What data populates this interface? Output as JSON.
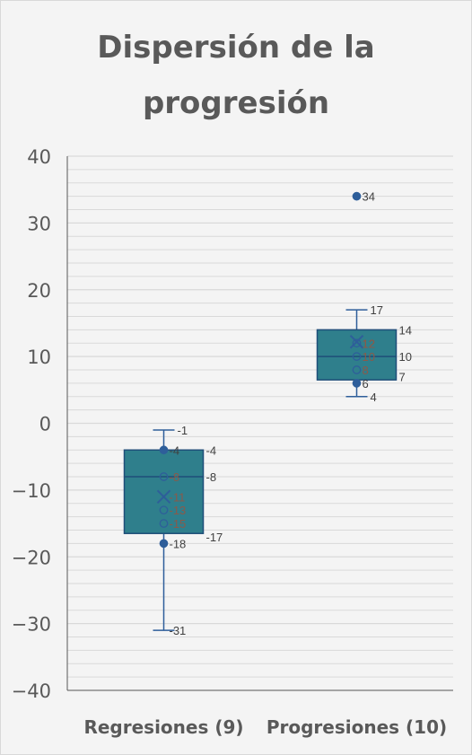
{
  "chart_data": {
    "type": "box",
    "title_line1": "Dispersión de la",
    "title_line2": "progresión",
    "ylim": [
      -40,
      40
    ],
    "yticks": [
      40,
      30,
      20,
      10,
      0,
      -10,
      -20,
      -30,
      -40
    ],
    "ytick_labels": [
      "40",
      "30",
      "20",
      "10",
      "0",
      "−10",
      "−20",
      "−30",
      "−40"
    ],
    "grid": true,
    "categories": [
      "Regresiones (9)",
      "Progresiones (10)"
    ],
    "series": [
      {
        "category": "Regresiones (9)",
        "min": -31,
        "q1": -16.5,
        "median": -8,
        "q3": -4,
        "max": -1,
        "mean": -11,
        "points": [
          -4,
          -8,
          -13,
          -15,
          -18
        ],
        "labels": [
          {
            "y": -1,
            "text": "-1",
            "side": "right"
          },
          {
            "y": -4,
            "text": "-4",
            "side": "point"
          },
          {
            "y": -4,
            "text": "-4",
            "side": "right"
          },
          {
            "y": -8,
            "text": "-8",
            "side": "point"
          },
          {
            "y": -8,
            "text": "-8",
            "side": "right"
          },
          {
            "y": -11,
            "text": "-11",
            "side": "point"
          },
          {
            "y": -13,
            "text": "-13",
            "side": "point"
          },
          {
            "y": -15,
            "text": "-15",
            "side": "point"
          },
          {
            "y": -17,
            "text": "-17",
            "side": "right"
          },
          {
            "y": -18,
            "text": "-18",
            "side": "point"
          },
          {
            "y": -31,
            "text": "-31",
            "side": "point"
          }
        ]
      },
      {
        "category": "Progresiones (10)",
        "min": 4,
        "q1": 6.5,
        "median": 10,
        "q3": 14,
        "max": 17,
        "mean": 12.2,
        "points": [
          6,
          8,
          10,
          12,
          34
        ],
        "labels": [
          {
            "y": 34,
            "text": "34",
            "side": "point"
          },
          {
            "y": 17,
            "text": "17",
            "side": "right"
          },
          {
            "y": 14,
            "text": "14",
            "side": "right"
          },
          {
            "y": 12,
            "text": "12",
            "side": "point"
          },
          {
            "y": 12,
            "text": "12",
            "side": "point"
          },
          {
            "y": 10,
            "text": "10",
            "side": "point"
          },
          {
            "y": 10,
            "text": "10",
            "side": "right"
          },
          {
            "y": 8,
            "text": "8",
            "side": "point"
          },
          {
            "y": 7,
            "text": "7",
            "side": "right"
          },
          {
            "y": 6,
            "text": "6",
            "side": "point"
          },
          {
            "y": 4,
            "text": "4",
            "side": "right"
          }
        ]
      }
    ],
    "colors": {
      "box_fill": "#2f7f8c",
      "box_stroke": "#1f4e79",
      "whisker": "#2e5e9a",
      "marker": "#2e5e9a",
      "grid": "#d9d9d9",
      "axis": "#595959"
    }
  }
}
